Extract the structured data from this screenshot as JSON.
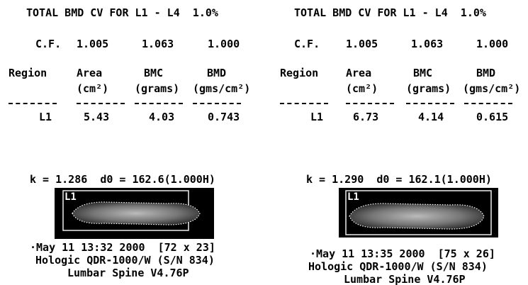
{
  "panels": [
    {
      "cv_line": "TOTAL BMD CV FOR L1 - L4  1.0%",
      "cf": {
        "label": "C.F.",
        "values": [
          "1.005",
          "1.063",
          "1.000"
        ]
      },
      "headers": [
        {
          "name": "Region"
        },
        {
          "name": "Area",
          "unit": "(cm²)"
        },
        {
          "name": "BMC",
          "unit": "(grams)"
        },
        {
          "name": "BMD",
          "unit": "(gms/cm²)"
        }
      ],
      "row": [
        "L1",
        "5.43",
        "4.03",
        "0.743"
      ],
      "k_line": "k = 1.286  d0 = 162.6(1.000H)",
      "image_label": "L1",
      "timestamp": "·May 11 13:32 2000  [72 x 23]",
      "device": "Hologic QDR-1000/W (S/N 834)",
      "software": "Lumbar Spine V4.76P"
    },
    {
      "cv_line": "TOTAL BMD CV FOR L1 - L4  1.0%",
      "cf": {
        "label": "C.F.",
        "values": [
          "1.005",
          "1.063",
          "1.000"
        ]
      },
      "headers": [
        {
          "name": "Region"
        },
        {
          "name": "Area",
          "unit": "(cm²)"
        },
        {
          "name": "BMC",
          "unit": "(grams)"
        },
        {
          "name": "BMD",
          "unit": "(gms/cm²)"
        }
      ],
      "row": [
        "L1",
        "6.73",
        "4.14",
        "0.615"
      ],
      "k_line": "k = 1.290  d0 = 162.1(1.000H)",
      "image_label": "L1",
      "timestamp": "·May 11 13:35 2000  [75 x 26]",
      "device": "Hologic QDR-1000/W (S/N 834)",
      "software": "Lumbar Spine V4.76P"
    }
  ]
}
